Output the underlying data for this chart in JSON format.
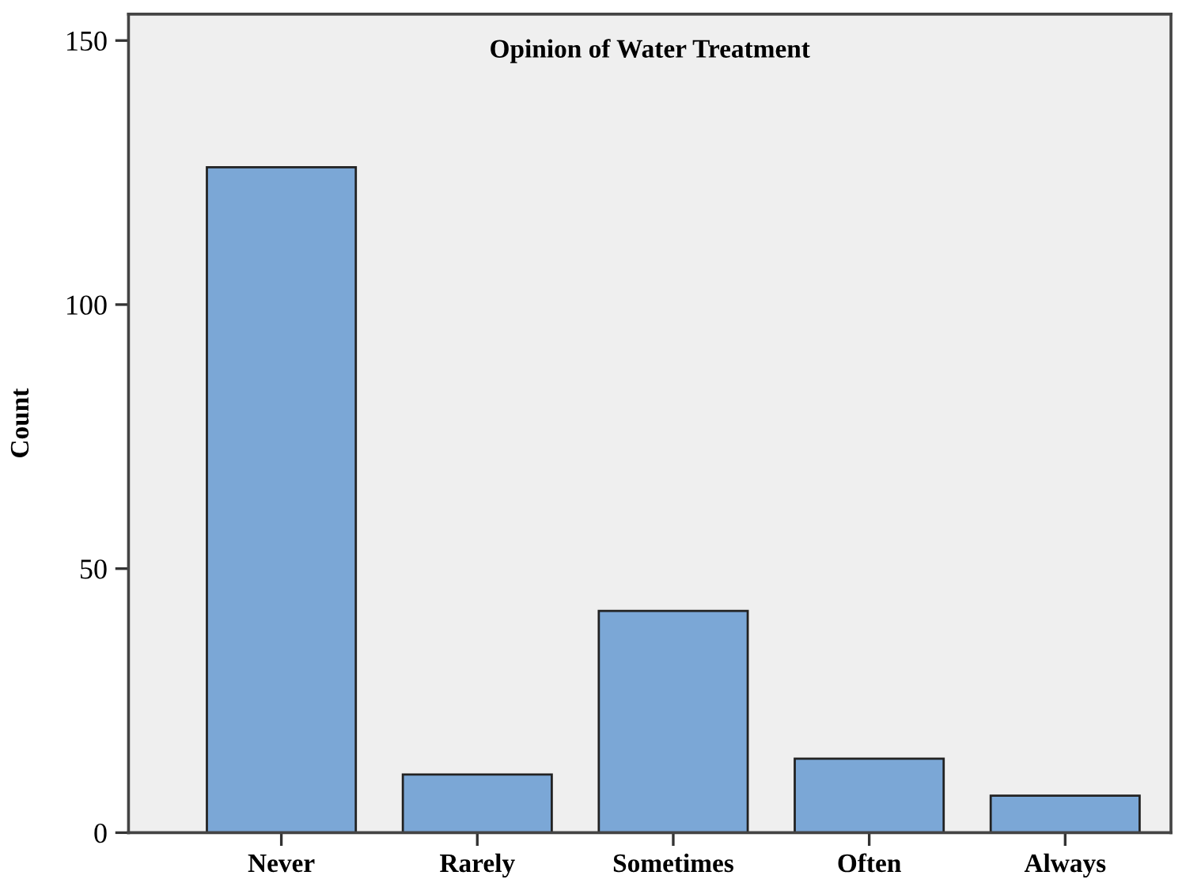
{
  "chart_data": {
    "type": "bar",
    "title": "Opinion of Water Treatment",
    "ylabel": "Count",
    "categories": [
      "Never",
      "Rarely",
      "Sometimes",
      "Often",
      "Always"
    ],
    "values": [
      126,
      11,
      42,
      14,
      7
    ],
    "color": "#7ba7d6",
    "ylim": [
      0,
      155
    ],
    "yticks": [
      0,
      50,
      100,
      150
    ],
    "grid": false,
    "legend": false
  }
}
